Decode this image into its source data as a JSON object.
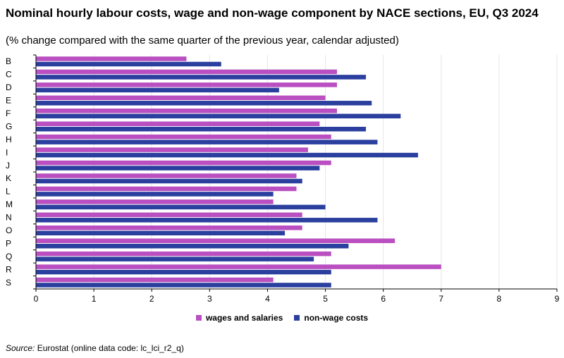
{
  "header": {
    "title": "Nominal hourly labour costs, wage and non-wage component by NACE sections, EU, Q3 2024",
    "subtitle": "(% change compared with the same quarter of the previous year, calendar adjusted)"
  },
  "source": {
    "label": "Source:",
    "text": "Eurostat (online data code: lc_lci_r2_q)"
  },
  "colors": {
    "wages": "#b94fc0",
    "nonwage": "#2a3f9e",
    "grid": "#e6e6e6",
    "axis": "#000000"
  },
  "chart_data": {
    "type": "bar",
    "orientation": "horizontal",
    "categories": [
      "B",
      "C",
      "D",
      "E",
      "F",
      "G",
      "H",
      "I",
      "J",
      "K",
      "L",
      "M",
      "N",
      "O",
      "P",
      "Q",
      "R",
      "S"
    ],
    "series": [
      {
        "name": "wages and salaries",
        "values": [
          2.6,
          5.2,
          5.2,
          5.0,
          5.2,
          4.9,
          5.1,
          4.7,
          5.1,
          4.5,
          4.5,
          4.1,
          4.6,
          4.6,
          6.2,
          5.1,
          7.0,
          4.1
        ]
      },
      {
        "name": "non-wage costs",
        "values": [
          3.2,
          5.7,
          4.2,
          5.8,
          6.3,
          5.7,
          5.9,
          6.6,
          4.9,
          4.6,
          4.1,
          5.0,
          5.9,
          4.3,
          5.4,
          4.8,
          5.1,
          5.1
        ]
      }
    ],
    "xlim": [
      0,
      9
    ],
    "xticks": [
      "0",
      "1",
      "2",
      "3",
      "4",
      "5",
      "6",
      "7",
      "8",
      "9"
    ],
    "grid": true,
    "legend_position": "bottom"
  }
}
